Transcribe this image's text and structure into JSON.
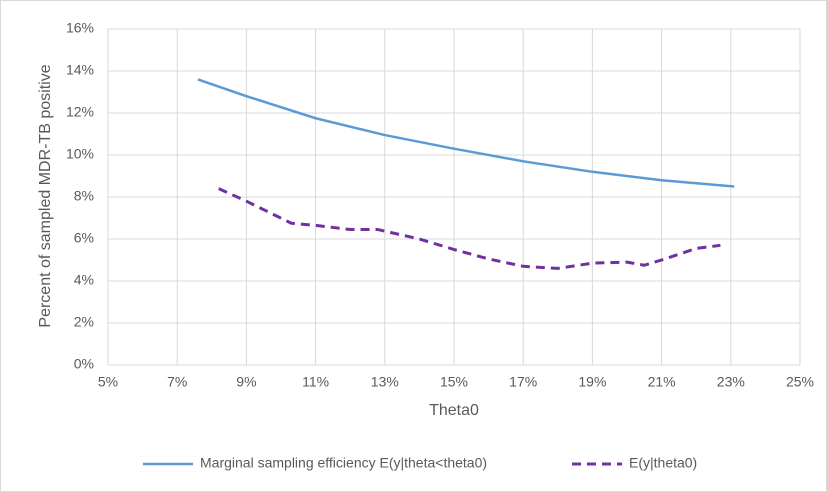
{
  "chart_data": {
    "type": "line",
    "x_label": "Theta0",
    "y_label": "Percent of sampled MDR-TB positive",
    "xlim": [
      5,
      25
    ],
    "xticks": [
      {
        "value": 5,
        "label": "5%"
      },
      {
        "value": 7,
        "label": "7%"
      },
      {
        "value": 9,
        "label": "9%"
      },
      {
        "value": 11,
        "label": "11%"
      },
      {
        "value": 13,
        "label": "13%"
      },
      {
        "value": 15,
        "label": "15%"
      },
      {
        "value": 17,
        "label": "17%"
      },
      {
        "value": 19,
        "label": "19%"
      },
      {
        "value": 21,
        "label": "21%"
      },
      {
        "value": 23,
        "label": "23%"
      },
      {
        "value": 25,
        "label": "25%"
      }
    ],
    "ylim": [
      0,
      16
    ],
    "yticks": [
      {
        "value": 0,
        "label": "0%"
      },
      {
        "value": 2,
        "label": "2%"
      },
      {
        "value": 4,
        "label": "4%"
      },
      {
        "value": 6,
        "label": "6%"
      },
      {
        "value": 8,
        "label": "8%"
      },
      {
        "value": 10,
        "label": "10%"
      },
      {
        "value": 12,
        "label": "12%"
      },
      {
        "value": 14,
        "label": "14%"
      },
      {
        "value": 16,
        "label": "16%"
      }
    ],
    "grid": true,
    "legend": "bottom",
    "series": [
      {
        "name": "Marginal sampling efficiency E(y|theta<theta0)",
        "color": "#5b9bd5",
        "dash": false,
        "x": [
          7.6,
          9,
          11,
          13,
          15,
          17,
          19,
          21,
          23.1
        ],
        "values": [
          13.6,
          12.8,
          11.75,
          10.95,
          10.3,
          9.7,
          9.2,
          8.8,
          8.5
        ]
      },
      {
        "name": "E(y|theta0)",
        "color": "#7030a0",
        "dash": true,
        "x": [
          8.2,
          9,
          10.3,
          11,
          12,
          12.8,
          14,
          15,
          16,
          17,
          18,
          19,
          20,
          20.5,
          21,
          22,
          22.7
        ],
        "values": [
          8.4,
          7.8,
          6.75,
          6.65,
          6.45,
          6.45,
          6.0,
          5.5,
          5.05,
          4.7,
          4.6,
          4.85,
          4.9,
          4.75,
          5.0,
          5.55,
          5.7
        ]
      }
    ]
  }
}
